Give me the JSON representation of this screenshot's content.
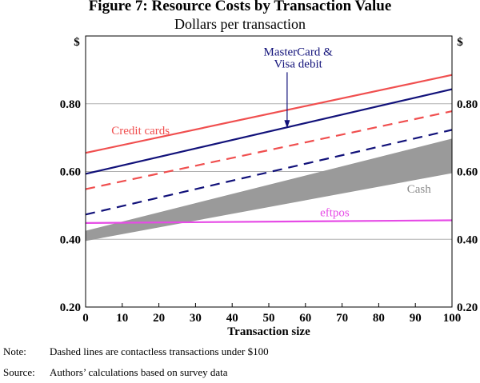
{
  "title": "Figure 7: Resource Costs by Transaction Value",
  "subtitle": "Dollars per transaction",
  "colors": {
    "credit": "#f04f4f",
    "scheme_debit": "#12127a",
    "cash": "#9a9a9a",
    "eftpos": "#e64be6",
    "grid": "#b0b0b0"
  },
  "chart_data": {
    "type": "line",
    "xlabel": "Transaction size",
    "ylabel_left": "$",
    "ylabel_right": "$",
    "xlim": [
      0,
      100
    ],
    "ylim": [
      0.2,
      1.0
    ],
    "xticks": [
      "0",
      "10",
      "20",
      "30",
      "40",
      "50",
      "60",
      "70",
      "80",
      "90",
      "100"
    ],
    "yticks": [
      "0.20",
      "0.40",
      "0.60",
      "0.80"
    ],
    "grid": "horizontal",
    "series": [
      {
        "name": "Credit cards",
        "style": "solid",
        "x": [
          0,
          100
        ],
        "y": [
          0.655,
          0.885
        ]
      },
      {
        "name": "",
        "style": "dashed",
        "x": [
          0,
          100
        ],
        "y": [
          0.548,
          0.778
        ]
      },
      {
        "name": "MasterCard & Visa debit",
        "style": "solid",
        "x": [
          0,
          100
        ],
        "y": [
          0.593,
          0.843
        ]
      },
      {
        "name": "",
        "style": "dashed",
        "x": [
          0,
          100
        ],
        "y": [
          0.473,
          0.723
        ]
      },
      {
        "name": "eftpos",
        "style": "solid",
        "x": [
          0,
          100
        ],
        "y": [
          0.448,
          0.456
        ]
      },
      {
        "name": "Cash",
        "style": "band",
        "x": [
          0,
          100
        ],
        "y_low": [
          0.395,
          0.595
        ],
        "y_high": [
          0.425,
          0.697
        ]
      }
    ],
    "annotations": [
      {
        "text": "MasterCard &",
        "x": 58,
        "y": 0.942
      },
      {
        "text": "Visa debit",
        "x": 58,
        "y": 0.907
      },
      {
        "text": "Credit cards",
        "x": 15,
        "y": 0.71
      },
      {
        "text": "Cash",
        "x": 91,
        "y": 0.538
      },
      {
        "text": "eftpos",
        "x": 68,
        "y": 0.468
      }
    ]
  },
  "notes": [
    {
      "label": "Note:",
      "text": "Dashed lines are contactless transactions under $100"
    },
    {
      "label": "Source:",
      "text": "Authors’ calculations based on survey data"
    }
  ]
}
